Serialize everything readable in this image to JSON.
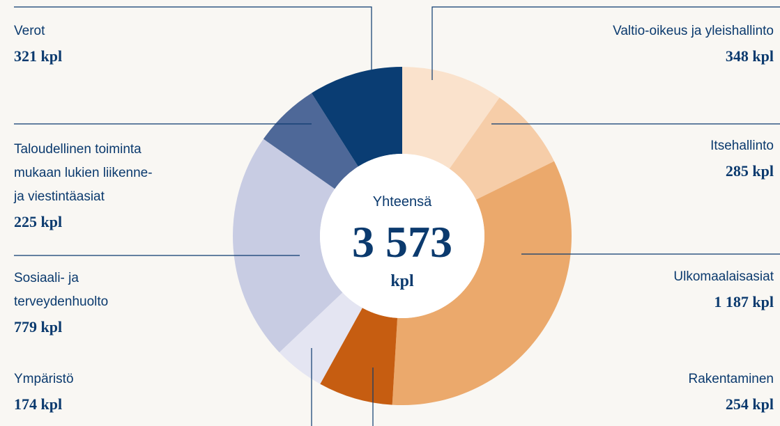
{
  "chart_data": {
    "type": "pie",
    "categories": [
      "Valtio-oikeus ja yleishallinto",
      "Itsehallinto",
      "Ulkomaalaisasiat",
      "Rakentaminen",
      "Ympäristö",
      "Sosiaali- ja\nterveydenhuolto",
      "Taloudellinen toiminta\nmukaan lukien liikenne-\nja viestintäasiat",
      "Verot"
    ],
    "values": [
      348,
      285,
      1187,
      254,
      174,
      779,
      225,
      321
    ],
    "value_labels": [
      "348 kpl",
      "285 kpl",
      "1 187 kpl",
      "254 kpl",
      "174 kpl",
      "779 kpl",
      "225 kpl",
      "321 kpl"
    ],
    "colors": [
      "#fae2cc",
      "#f6cda8",
      "#eba96c",
      "#c65d11",
      "#e4e5f2",
      "#c8cce3",
      "#4e6898",
      "#0a3d73"
    ],
    "center_title": "Yhteensä",
    "total": {
      "value": 3573,
      "label": "3 573"
    },
    "unit": "kpl"
  }
}
